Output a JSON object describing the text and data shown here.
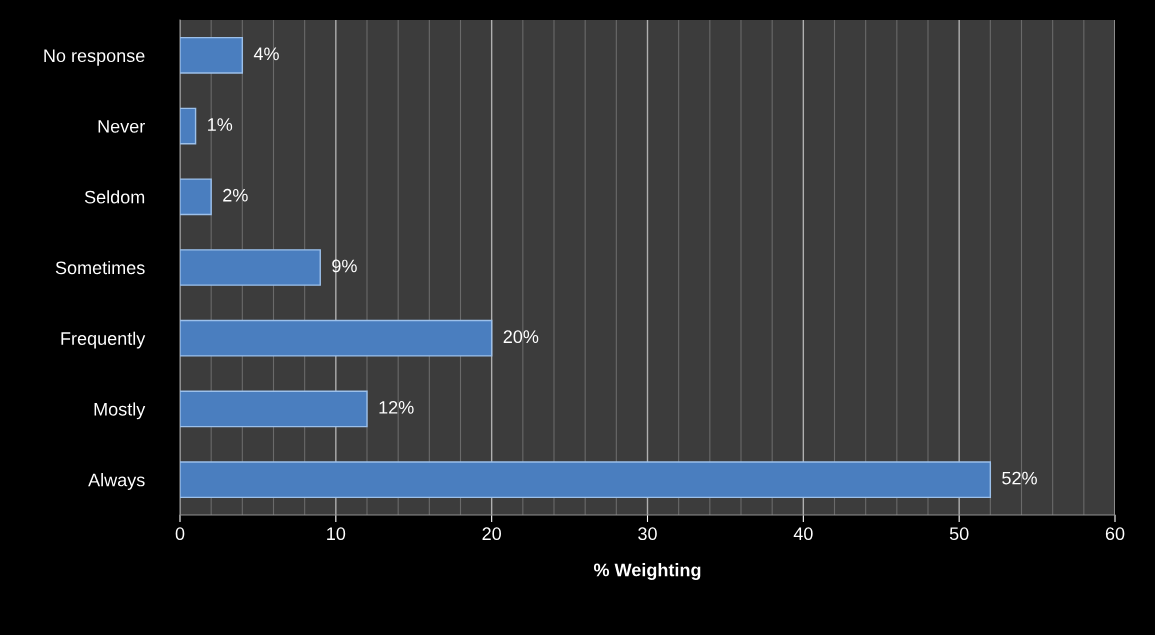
{
  "chart_data": {
    "type": "bar",
    "orientation": "horizontal",
    "xlabel": "% Weighting",
    "categories": [
      "No response",
      "Never",
      "Seldom",
      "Sometimes",
      "Frequently",
      "Mostly",
      "Always"
    ],
    "values": [
      4,
      1,
      2,
      9,
      20,
      12,
      52
    ],
    "value_labels": [
      "4%",
      "1%",
      "2%",
      "9%",
      "20%",
      "12%",
      "52%"
    ],
    "color": "#4a7ebf",
    "xlim": [
      0,
      60
    ],
    "xticks": [
      0,
      10,
      20,
      30,
      40,
      50,
      60
    ],
    "grid": "x"
  }
}
